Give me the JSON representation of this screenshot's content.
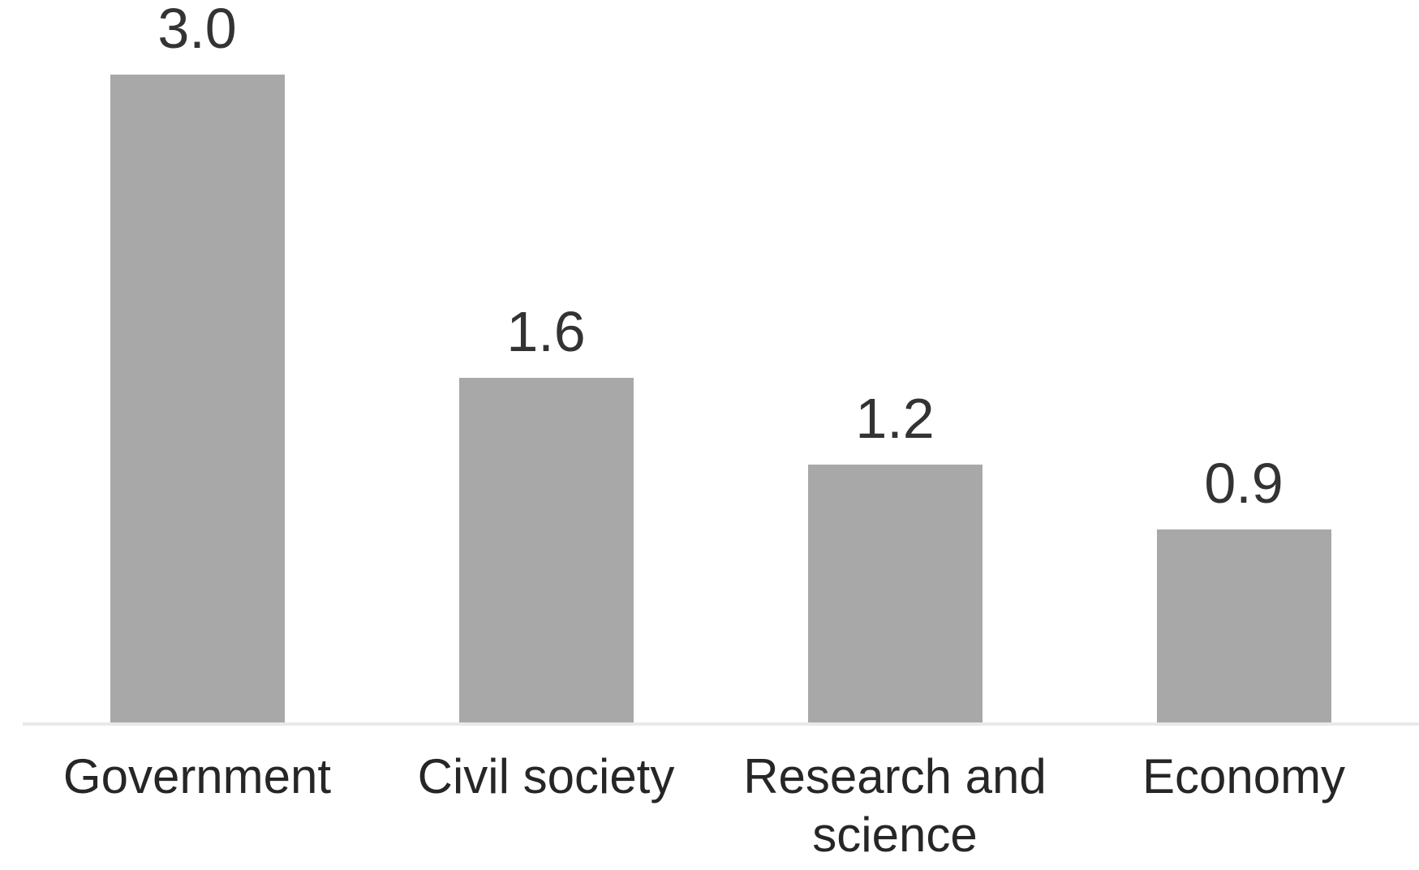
{
  "chart_data": {
    "type": "bar",
    "title": "",
    "xlabel": "",
    "ylabel": "",
    "categories": [
      "Government",
      "Civil society",
      "Research and science",
      "Economy"
    ],
    "values": [
      3.0,
      1.6,
      1.2,
      0.9
    ],
    "value_labels": [
      "3.0",
      "1.6",
      "1.2",
      "0.9"
    ],
    "ylim": [
      0,
      3.2
    ],
    "grid": false,
    "legend": false,
    "layout_hints": {
      "orientation": "vertical",
      "value_labels_position": "above-bars",
      "axis_line": "bottom-only",
      "tick_labels": "none"
    },
    "colors": {
      "bar": "#a8a8a8",
      "value_label_text": "#333333",
      "category_label_text": "#262626",
      "axis_line": "#e9e9e9",
      "background": "#ffffff"
    }
  }
}
